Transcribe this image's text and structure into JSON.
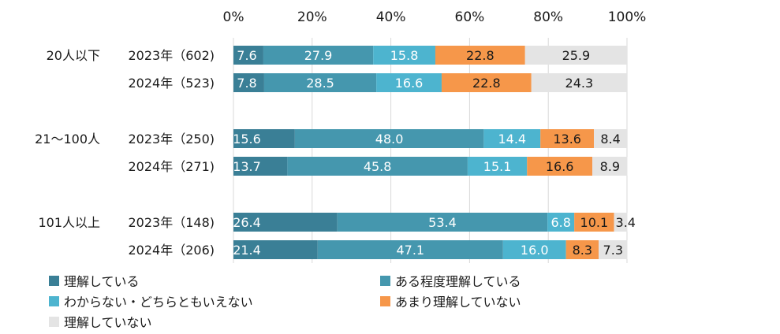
{
  "chart_data": {
    "type": "bar",
    "orientation": "horizontal",
    "stacked": true,
    "xlim": [
      0,
      100
    ],
    "x_ticks": [
      "0%",
      "20%",
      "40%",
      "60%",
      "80%",
      "100%"
    ],
    "grid": true,
    "legend_position": "bottom",
    "groups": [
      {
        "label": "20人以下",
        "rows": [
          {
            "label": "2023年（602)",
            "values": [
              7.6,
              27.9,
              15.8,
              22.8,
              25.9
            ],
            "labels": [
              "7.6",
              "27.9",
              "15.8",
              "22.8",
              "25.9"
            ]
          },
          {
            "label": "2024年（523)",
            "values": [
              7.8,
              28.5,
              16.6,
              22.8,
              24.3
            ],
            "labels": [
              "7.8",
              "28.5",
              "16.6",
              "22.8",
              "24.3"
            ]
          }
        ]
      },
      {
        "label": "21～100人",
        "rows": [
          {
            "label": "2023年（250)",
            "values": [
              15.6,
              48.0,
              14.4,
              13.6,
              8.4
            ],
            "labels": [
              "15.6",
              "48.0",
              "14.4",
              "13.6",
              "8.4"
            ]
          },
          {
            "label": "2024年（271)",
            "values": [
              13.7,
              45.8,
              15.1,
              16.6,
              8.9
            ],
            "labels": [
              "13.7",
              "45.8",
              "15.1",
              "16.6",
              "8.9"
            ]
          }
        ]
      },
      {
        "label": "101人以上",
        "rows": [
          {
            "label": "2023年（148)",
            "values": [
              26.4,
              53.4,
              6.8,
              10.1,
              3.4
            ],
            "labels": [
              "26.4",
              "53.4",
              "6.8",
              "10.1",
              "3.4"
            ]
          },
          {
            "label": "2024年（206)",
            "values": [
              21.4,
              47.1,
              16.0,
              8.3,
              7.3
            ],
            "labels": [
              "21.4",
              "47.1",
              "16.0",
              "8.3",
              "7.3"
            ]
          }
        ]
      }
    ],
    "series": [
      {
        "name": "理解している",
        "color": "#3a7f96"
      },
      {
        "name": "ある程度理解している",
        "color": "#4597ae"
      },
      {
        "name": "わからない・どちらともいえない",
        "color": "#4db4cf"
      },
      {
        "name": "あまり理解していない",
        "color": "#f6974a"
      },
      {
        "name": "理解していない",
        "color": "#e4e4e4"
      }
    ]
  }
}
